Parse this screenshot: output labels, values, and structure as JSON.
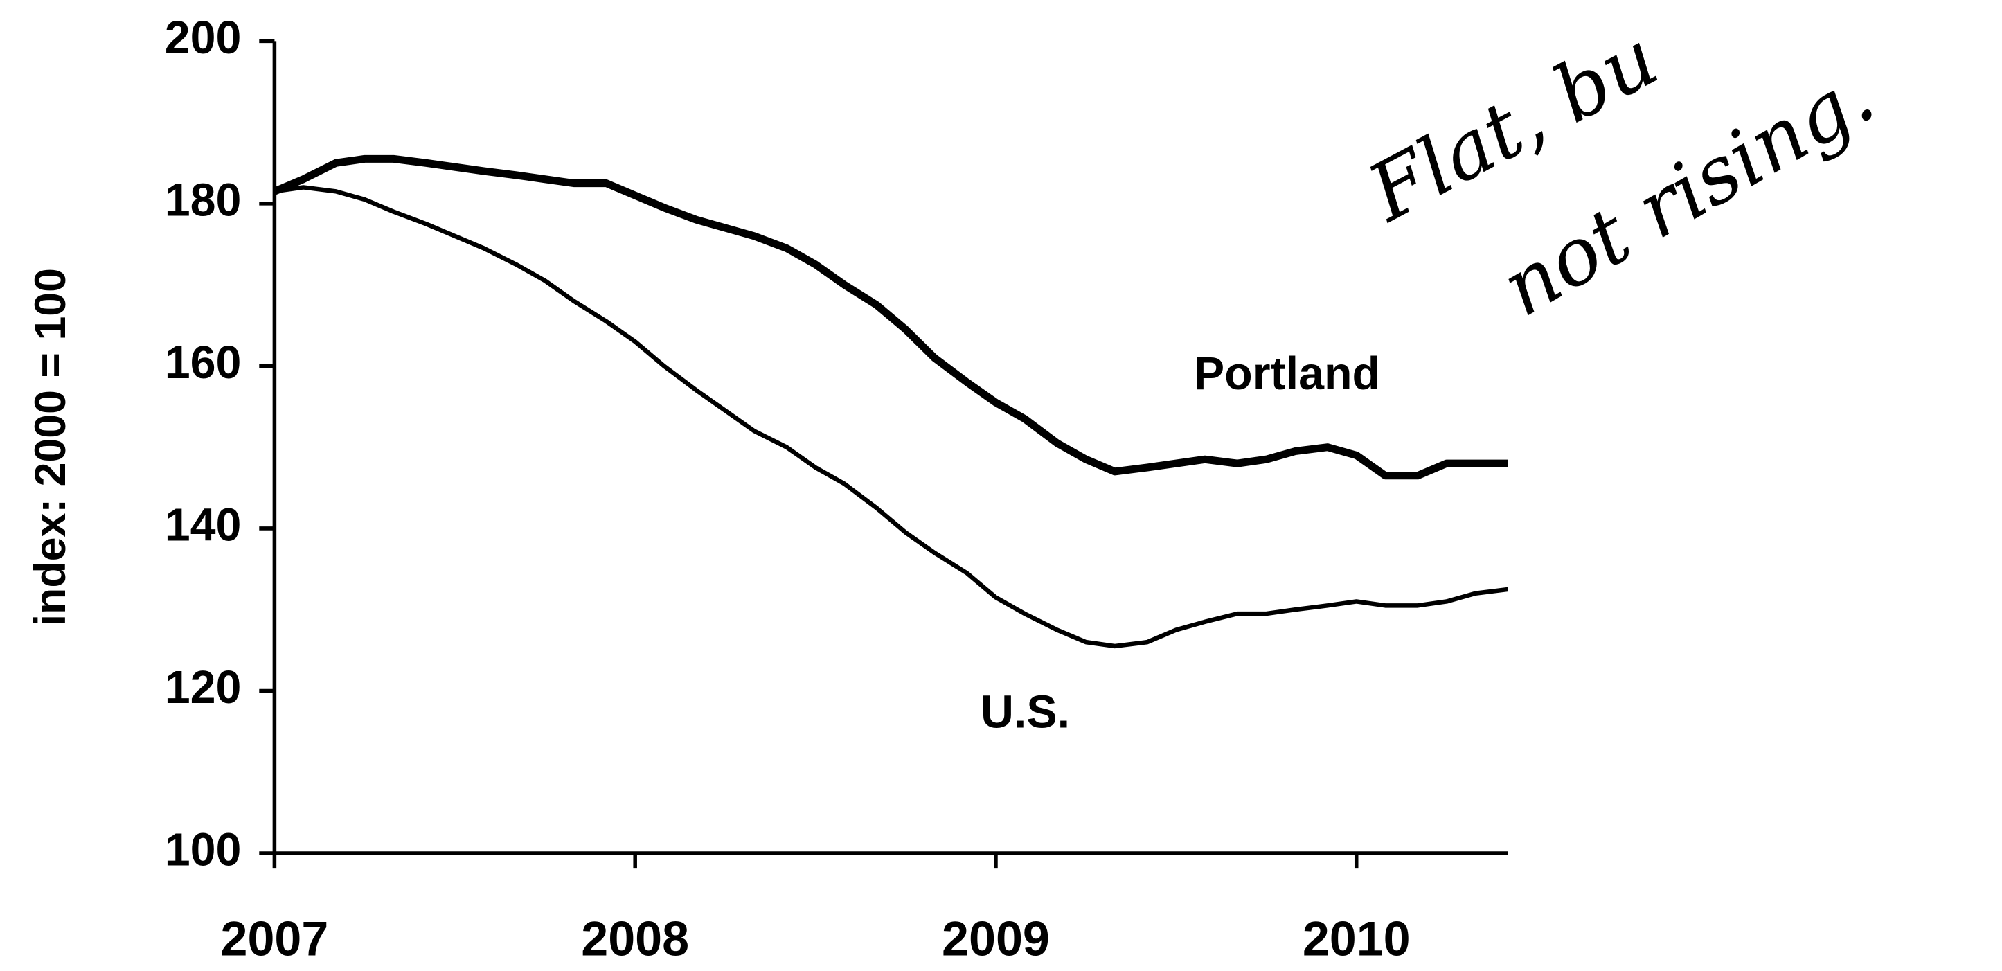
{
  "chart_data": {
    "type": "line",
    "ylabel": "index: 2000 = 100",
    "x": [
      2007,
      2007.08,
      2007.17,
      2007.25,
      2007.33,
      2007.42,
      2007.5,
      2007.58,
      2007.67,
      2007.75,
      2007.83,
      2007.92,
      2008,
      2008.08,
      2008.17,
      2008.25,
      2008.33,
      2008.42,
      2008.5,
      2008.58,
      2008.67,
      2008.75,
      2008.83,
      2008.92,
      2009,
      2009.08,
      2009.17,
      2009.25,
      2009.33,
      2009.42,
      2009.5,
      2009.58,
      2009.67,
      2009.75,
      2009.83,
      2009.92,
      2010,
      2010.08,
      2010.17,
      2010.25,
      2010.33,
      2010.42
    ],
    "series": [
      {
        "name": "Portland",
        "color": "#000000",
        "width": 6,
        "values": [
          181.5,
          183,
          185,
          185.5,
          185.5,
          185,
          184.5,
          184,
          183.5,
          183,
          182.5,
          182.5,
          181,
          179.5,
          178,
          177,
          176,
          174.5,
          172.5,
          170,
          167.5,
          164.5,
          161,
          158,
          155.5,
          153.5,
          150.5,
          148.5,
          147,
          147.5,
          148,
          148.5,
          148,
          148.5,
          149.5,
          150,
          149,
          146.5,
          146.5,
          148,
          148,
          148
        ]
      },
      {
        "name": "U.S.",
        "color": "#000000",
        "width": 3.5,
        "values": [
          181.5,
          182,
          181.5,
          180.5,
          179,
          177.5,
          176,
          174.5,
          172.5,
          170.5,
          168,
          165.5,
          163,
          160,
          157,
          154.5,
          152,
          150,
          147.5,
          145.5,
          142.5,
          139.5,
          137,
          134.5,
          131.5,
          129.5,
          127.5,
          126,
          125.5,
          126,
          127.5,
          128.5,
          129.5,
          129.5,
          130,
          130.5,
          131,
          130.5,
          130.5,
          131,
          132,
          132.5
        ]
      }
    ],
    "annotations": [
      "Flat, bu",
      "not rising."
    ],
    "xlim": [
      2007,
      2010.42
    ],
    "xticks": [
      2007,
      2008,
      2009,
      2010
    ],
    "ylim": [
      100,
      200
    ],
    "yticks": [
      100,
      120,
      140,
      160,
      180,
      200
    ],
    "grid": false
  }
}
